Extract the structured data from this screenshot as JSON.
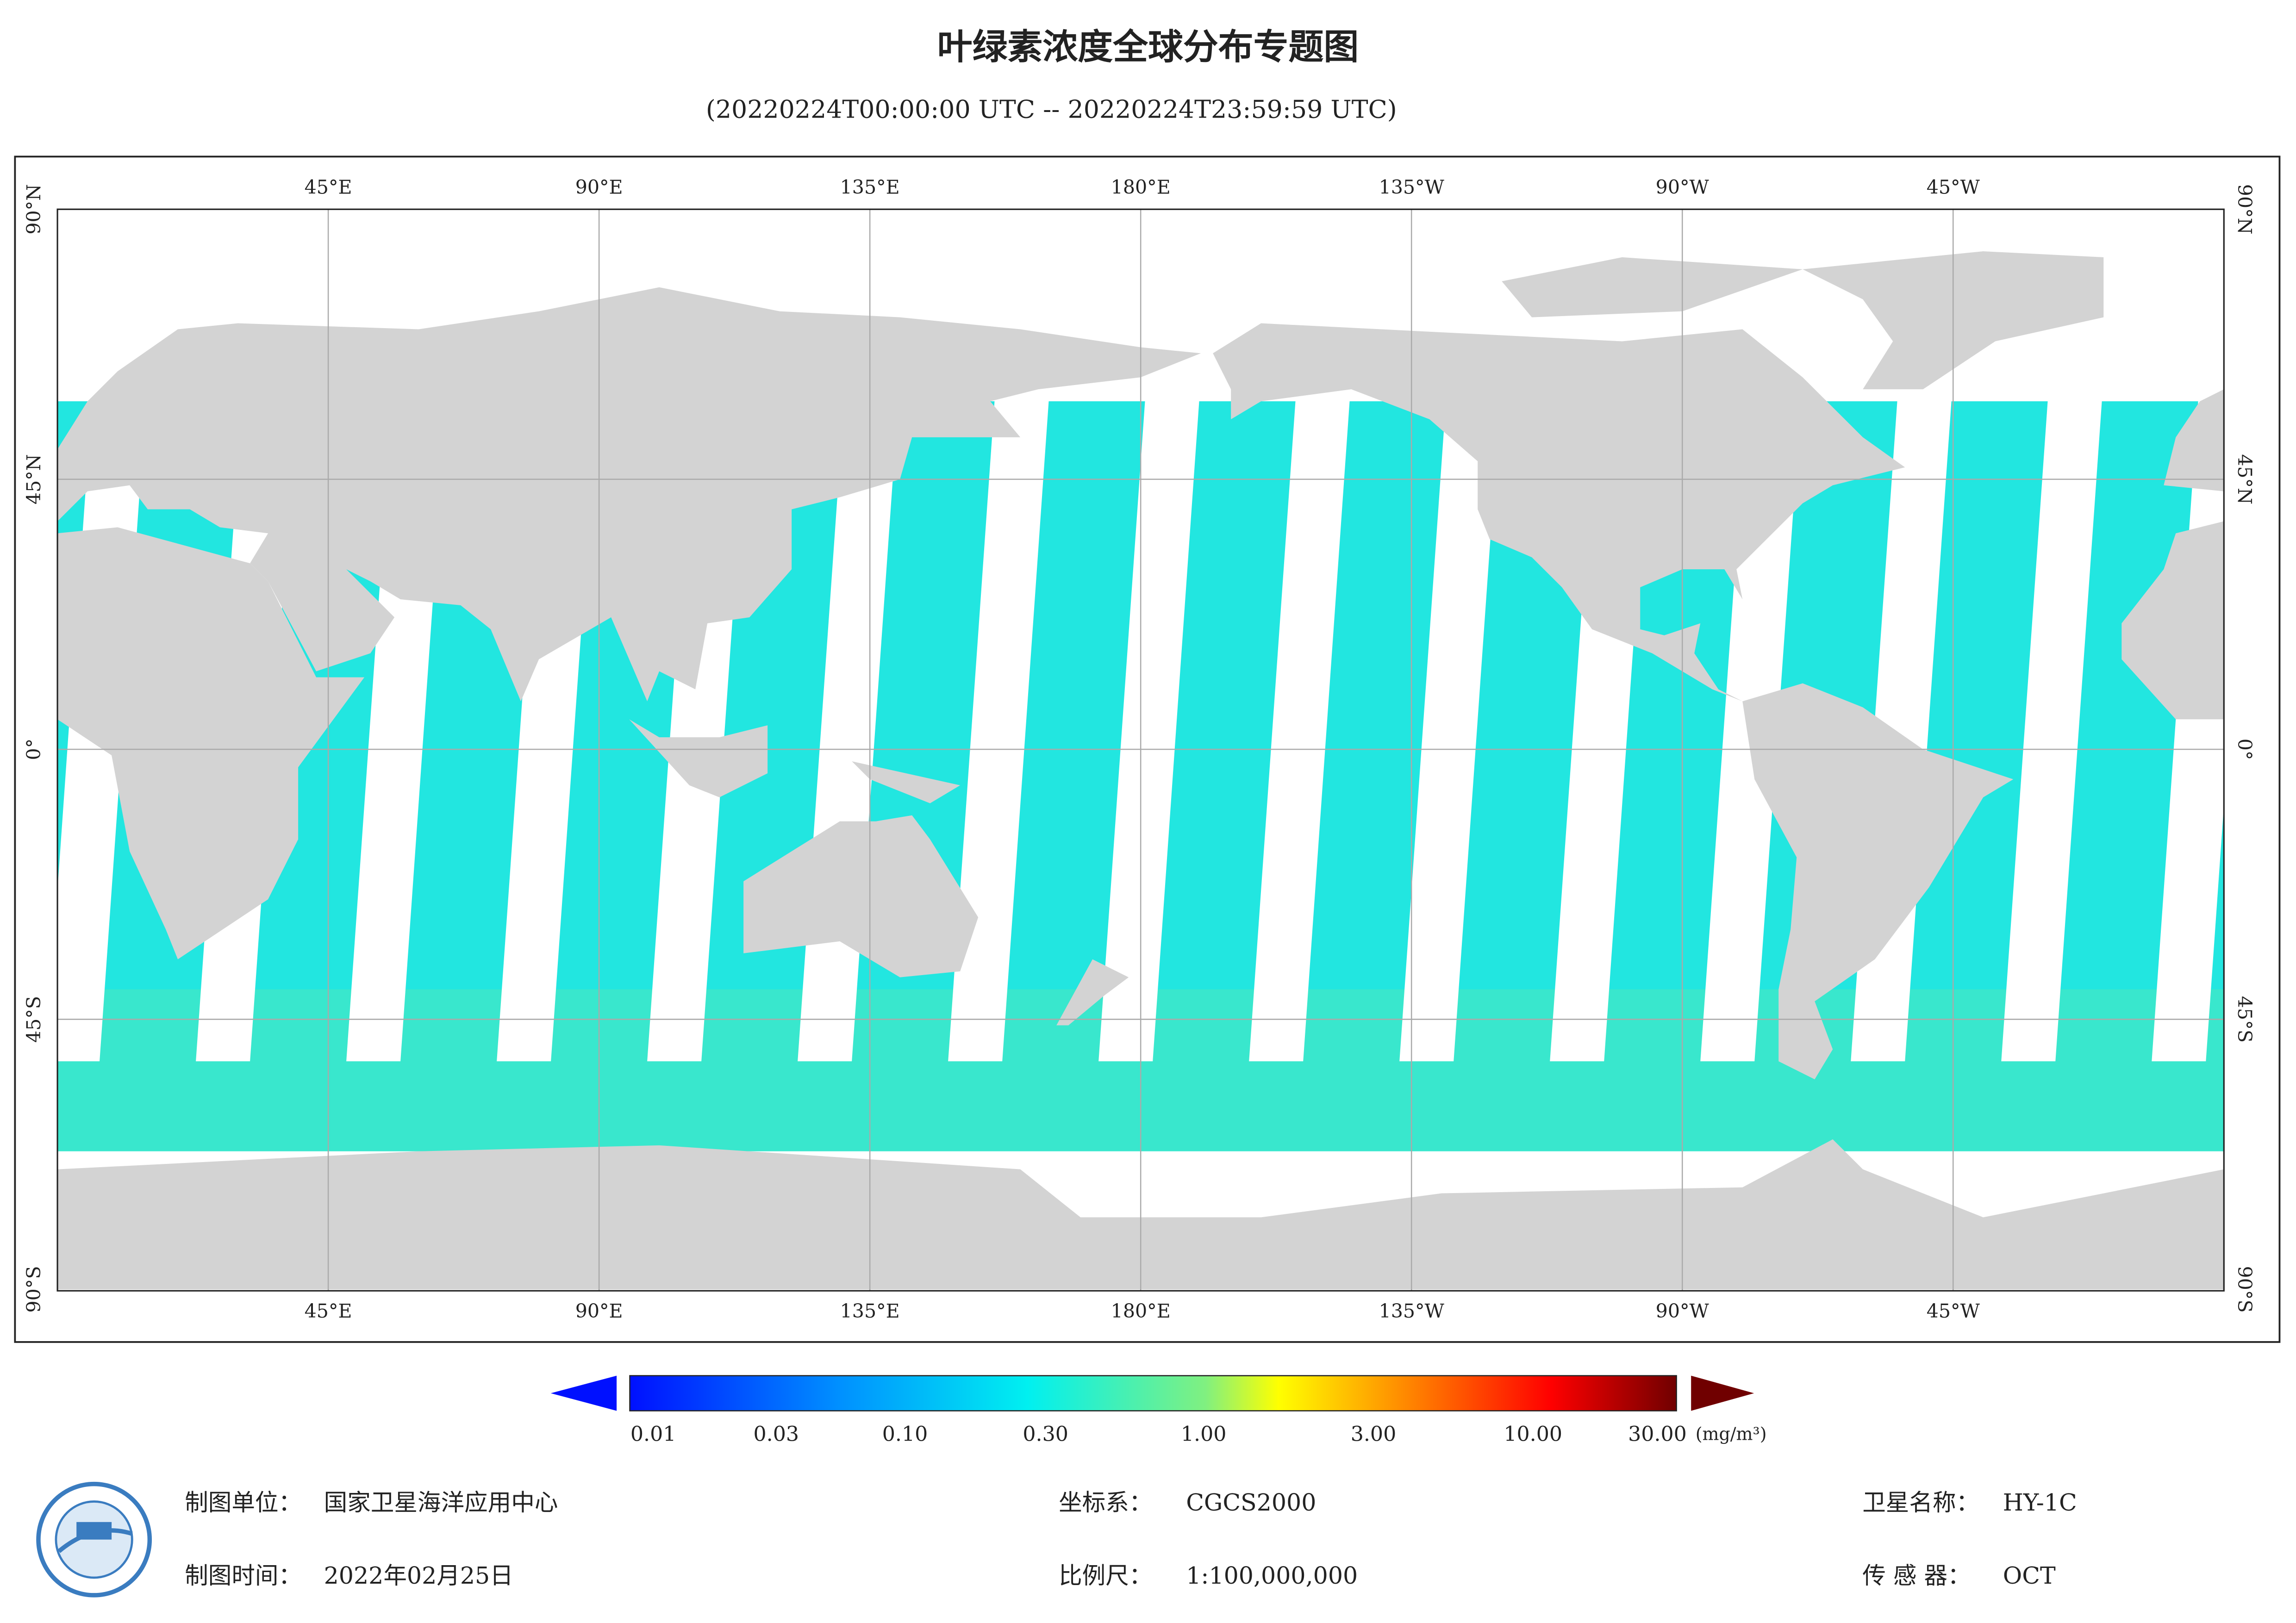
{
  "header": {
    "title": "叶绿素浓度全球分布专题图",
    "subtitle": "(20220224T00:00:00 UTC -- 20220224T23:59:59 UTC)"
  },
  "map": {
    "lon_labels": [
      "45°E",
      "90°E",
      "135°E",
      "180°E",
      "135°W",
      "90°W",
      "45°W"
    ],
    "lat_labels": [
      "90°N",
      "45°N",
      "0°",
      "45°S",
      "90°S"
    ]
  },
  "colorbar": {
    "ticks": [
      "0.01",
      "0.03",
      "0.10",
      "0.30",
      "1.00",
      "3.00",
      "10.00",
      "30.00"
    ],
    "unit": "(mg/m³)"
  },
  "footer": {
    "items": [
      {
        "label": "制图单位：",
        "value": "国家卫星海洋应用中心"
      },
      {
        "label": "坐标系：",
        "value": "CGCS2000"
      },
      {
        "label": "卫星名称：",
        "value": "HY-1C"
      },
      {
        "label": "制图时间：",
        "value": "2022年02月25日"
      },
      {
        "label": "比例尺：",
        "value": "1:100,000,000"
      },
      {
        "label": "传 感 器：",
        "value": "OCT"
      }
    ]
  }
}
